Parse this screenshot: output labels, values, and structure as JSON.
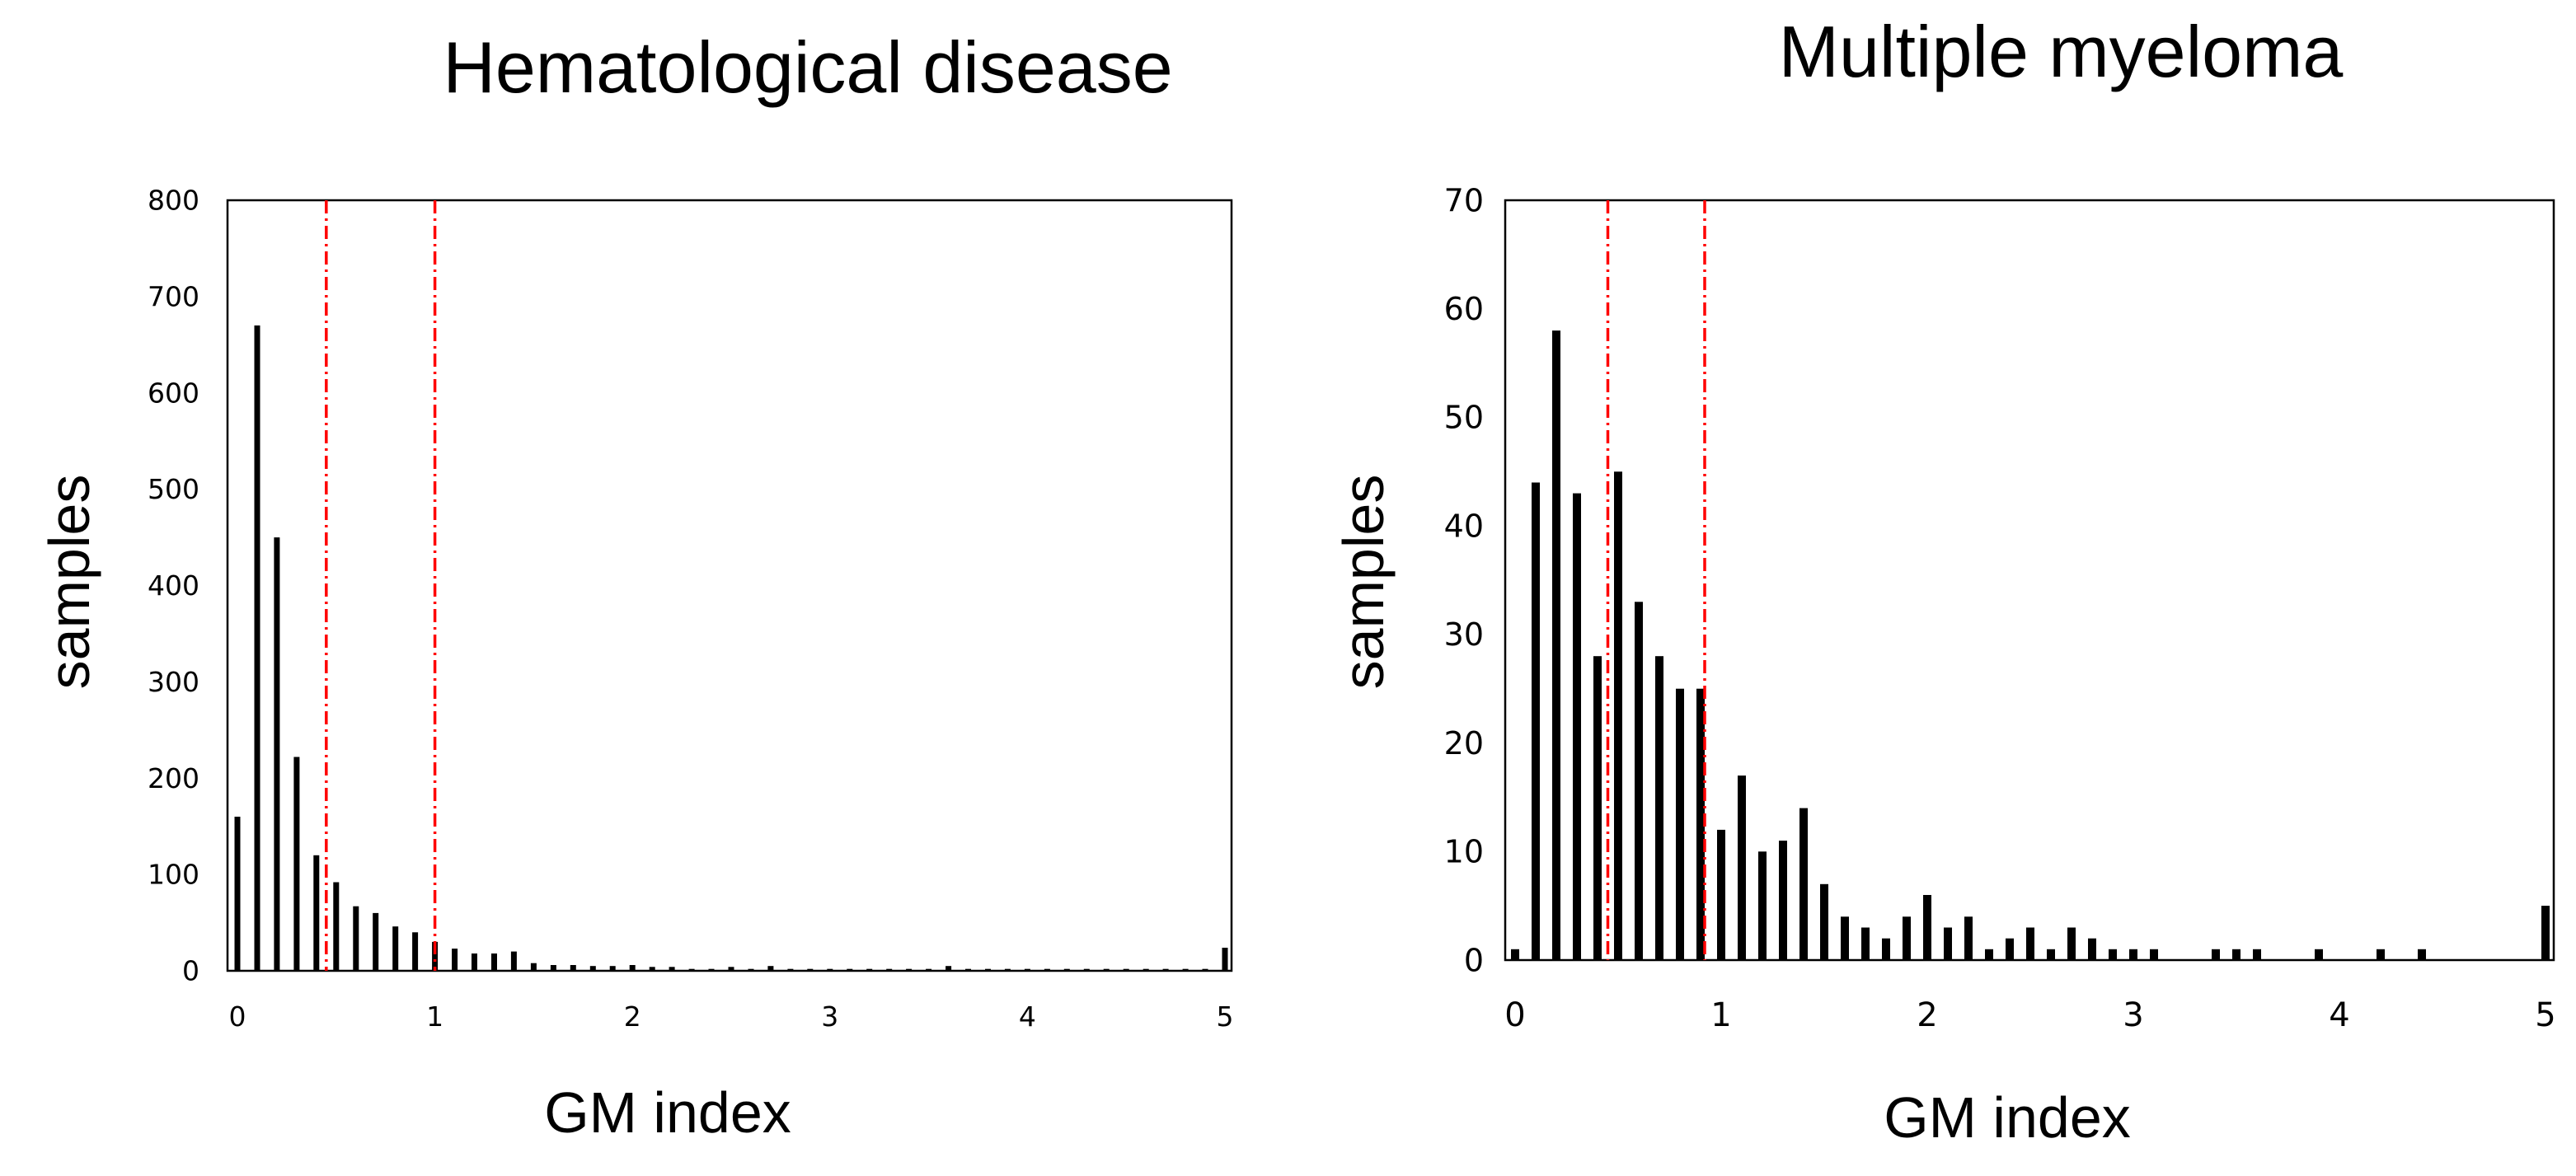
{
  "chart_data": [
    {
      "type": "bar",
      "title": "Hematological disease",
      "xlabel": "GM index",
      "ylabel": "samples",
      "xlim": [
        0,
        5
      ],
      "ylim": [
        0,
        800
      ],
      "xticks": [
        0,
        1,
        2,
        3,
        4,
        5
      ],
      "yticks": [
        0,
        100,
        200,
        300,
        400,
        500,
        600,
        700,
        800
      ],
      "reference_lines_x": [
        0.45,
        1.0
      ],
      "reference_line_color": "#ff0000",
      "bar_color": "#000000",
      "x": [
        0,
        0.1,
        0.2,
        0.3,
        0.4,
        0.5,
        0.6,
        0.7,
        0.8,
        0.9,
        1.0,
        1.1,
        1.2,
        1.3,
        1.4,
        1.5,
        1.6,
        1.7,
        1.8,
        1.9,
        2.0,
        2.1,
        2.2,
        2.3,
        2.4,
        2.5,
        2.6,
        2.7,
        2.8,
        2.9,
        3.0,
        3.1,
        3.2,
        3.3,
        3.4,
        3.5,
        3.6,
        3.7,
        3.8,
        3.9,
        4.0,
        4.1,
        4.2,
        4.3,
        4.4,
        4.5,
        4.6,
        4.7,
        4.8,
        4.9,
        5.0
      ],
      "values": [
        160,
        670,
        450,
        222,
        120,
        92,
        67,
        60,
        46,
        40,
        30,
        23,
        18,
        18,
        20,
        8,
        6,
        6,
        5,
        5,
        6,
        4,
        4,
        2,
        2,
        4,
        2,
        5,
        2,
        2,
        2,
        2,
        2,
        2,
        2,
        2,
        5,
        2,
        2,
        2,
        2,
        2,
        2,
        2,
        2,
        2,
        2,
        2,
        2,
        2,
        24
      ]
    },
    {
      "type": "bar",
      "title": "Multiple myeloma",
      "xlabel": "GM index",
      "ylabel": "samples",
      "xlim": [
        0,
        5
      ],
      "ylim": [
        0,
        70
      ],
      "xticks": [
        0,
        1,
        2,
        3,
        4,
        5
      ],
      "yticks": [
        0,
        10,
        20,
        30,
        40,
        50,
        60,
        70
      ],
      "reference_lines_x": [
        0.45,
        0.92
      ],
      "reference_line_color": "#ff0000",
      "bar_color": "#000000",
      "x": [
        0,
        0.1,
        0.2,
        0.3,
        0.4,
        0.5,
        0.6,
        0.7,
        0.8,
        0.9,
        1.0,
        1.1,
        1.2,
        1.3,
        1.4,
        1.5,
        1.6,
        1.7,
        1.8,
        1.9,
        2.0,
        2.1,
        2.2,
        2.3,
        2.4,
        2.5,
        2.6,
        2.7,
        2.8,
        2.9,
        3.0,
        3.1,
        3.4,
        3.5,
        3.6,
        3.9,
        4.2,
        4.4,
        5.0
      ],
      "values": [
        1,
        44,
        58,
        43,
        28,
        45,
        33,
        28,
        25,
        25,
        12,
        17,
        10,
        11,
        14,
        7,
        4,
        3,
        2,
        4,
        6,
        3,
        4,
        1,
        2,
        3,
        1,
        3,
        2,
        1,
        1,
        1,
        1,
        1,
        1,
        1,
        1,
        1,
        5
      ]
    }
  ]
}
